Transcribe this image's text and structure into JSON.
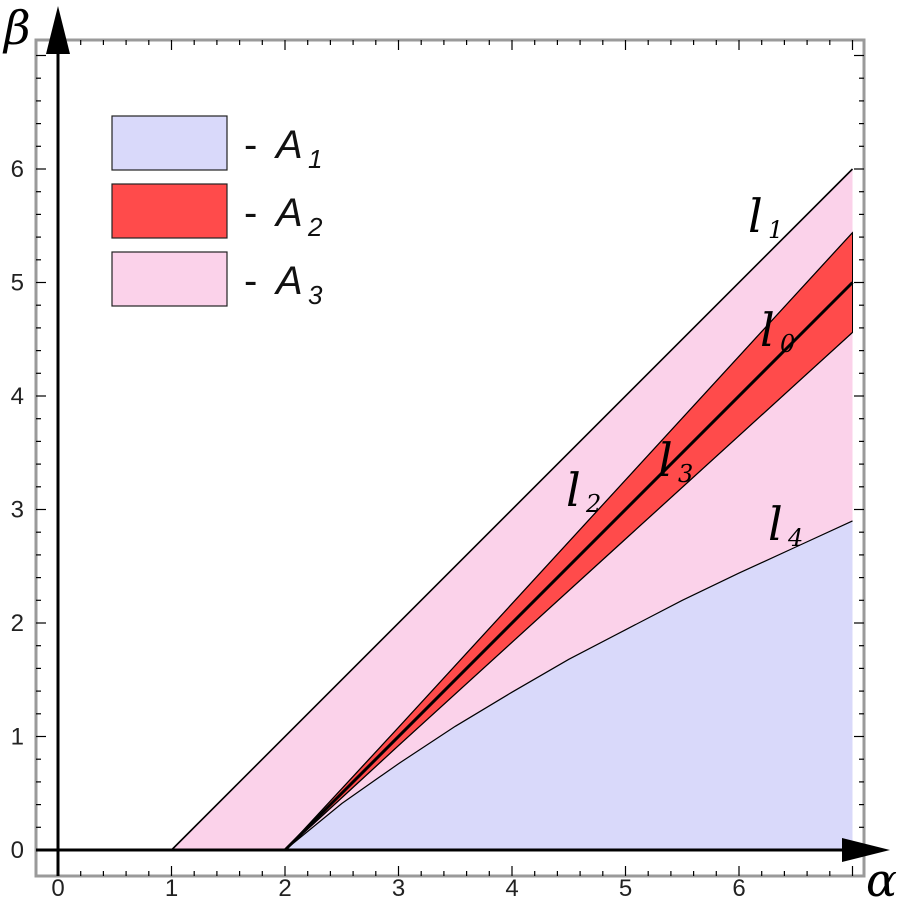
{
  "chart_data": {
    "type": "area",
    "xlabel": "α",
    "ylabel": "β",
    "xlim": [
      -0.2,
      7.0
    ],
    "ylim": [
      -0.05,
      7.2
    ],
    "xticks": [
      0,
      1,
      2,
      3,
      4,
      5,
      6
    ],
    "yticks": [
      0,
      1,
      2,
      3,
      4,
      5,
      6
    ],
    "grid": false,
    "legend_position": "top-left",
    "legend": [
      {
        "symbol": "A",
        "sub": "1",
        "dash": "-",
        "color": "#d9d9fa"
      },
      {
        "symbol": "A",
        "sub": "2",
        "dash": "-",
        "color": "#ff4b4b"
      },
      {
        "symbol": "A",
        "sub": "3",
        "dash": "-",
        "color": "#fbd2ea"
      }
    ],
    "regions": [
      {
        "name": "A1",
        "color": "#d9d9fa",
        "description_upper_boundary": "l4"
      },
      {
        "name": "A2",
        "color": "#ff4b4b",
        "between": [
          "l3",
          "l2"
        ]
      },
      {
        "name": "A3",
        "color": "#fbd2ea",
        "between": [
          "l4",
          "l1"
        ]
      }
    ],
    "curves": [
      {
        "label": "l",
        "sub": "1",
        "x": [
          1,
          7
        ],
        "y": [
          0,
          6
        ]
      },
      {
        "label": "l",
        "sub": "0",
        "x": [
          2,
          7
        ],
        "y": [
          0,
          5
        ]
      },
      {
        "label": "l",
        "sub": "2",
        "x": [
          2,
          3,
          4,
          5,
          6,
          7
        ],
        "y": [
          0,
          1.08,
          2.17,
          3.26,
          4.35,
          5.44
        ]
      },
      {
        "label": "l",
        "sub": "3",
        "x": [
          2,
          3,
          4,
          5,
          6,
          7
        ],
        "y": [
          0,
          0.92,
          1.83,
          2.74,
          3.65,
          4.56
        ]
      },
      {
        "label": "l",
        "sub": "4",
        "x": [
          2,
          2.5,
          3,
          3.5,
          4,
          4.5,
          5,
          5.5,
          6,
          6.5,
          7
        ],
        "y": [
          0,
          0.41,
          0.76,
          1.09,
          1.39,
          1.68,
          1.94,
          2.2,
          2.44,
          2.67,
          2.9
        ]
      }
    ]
  }
}
